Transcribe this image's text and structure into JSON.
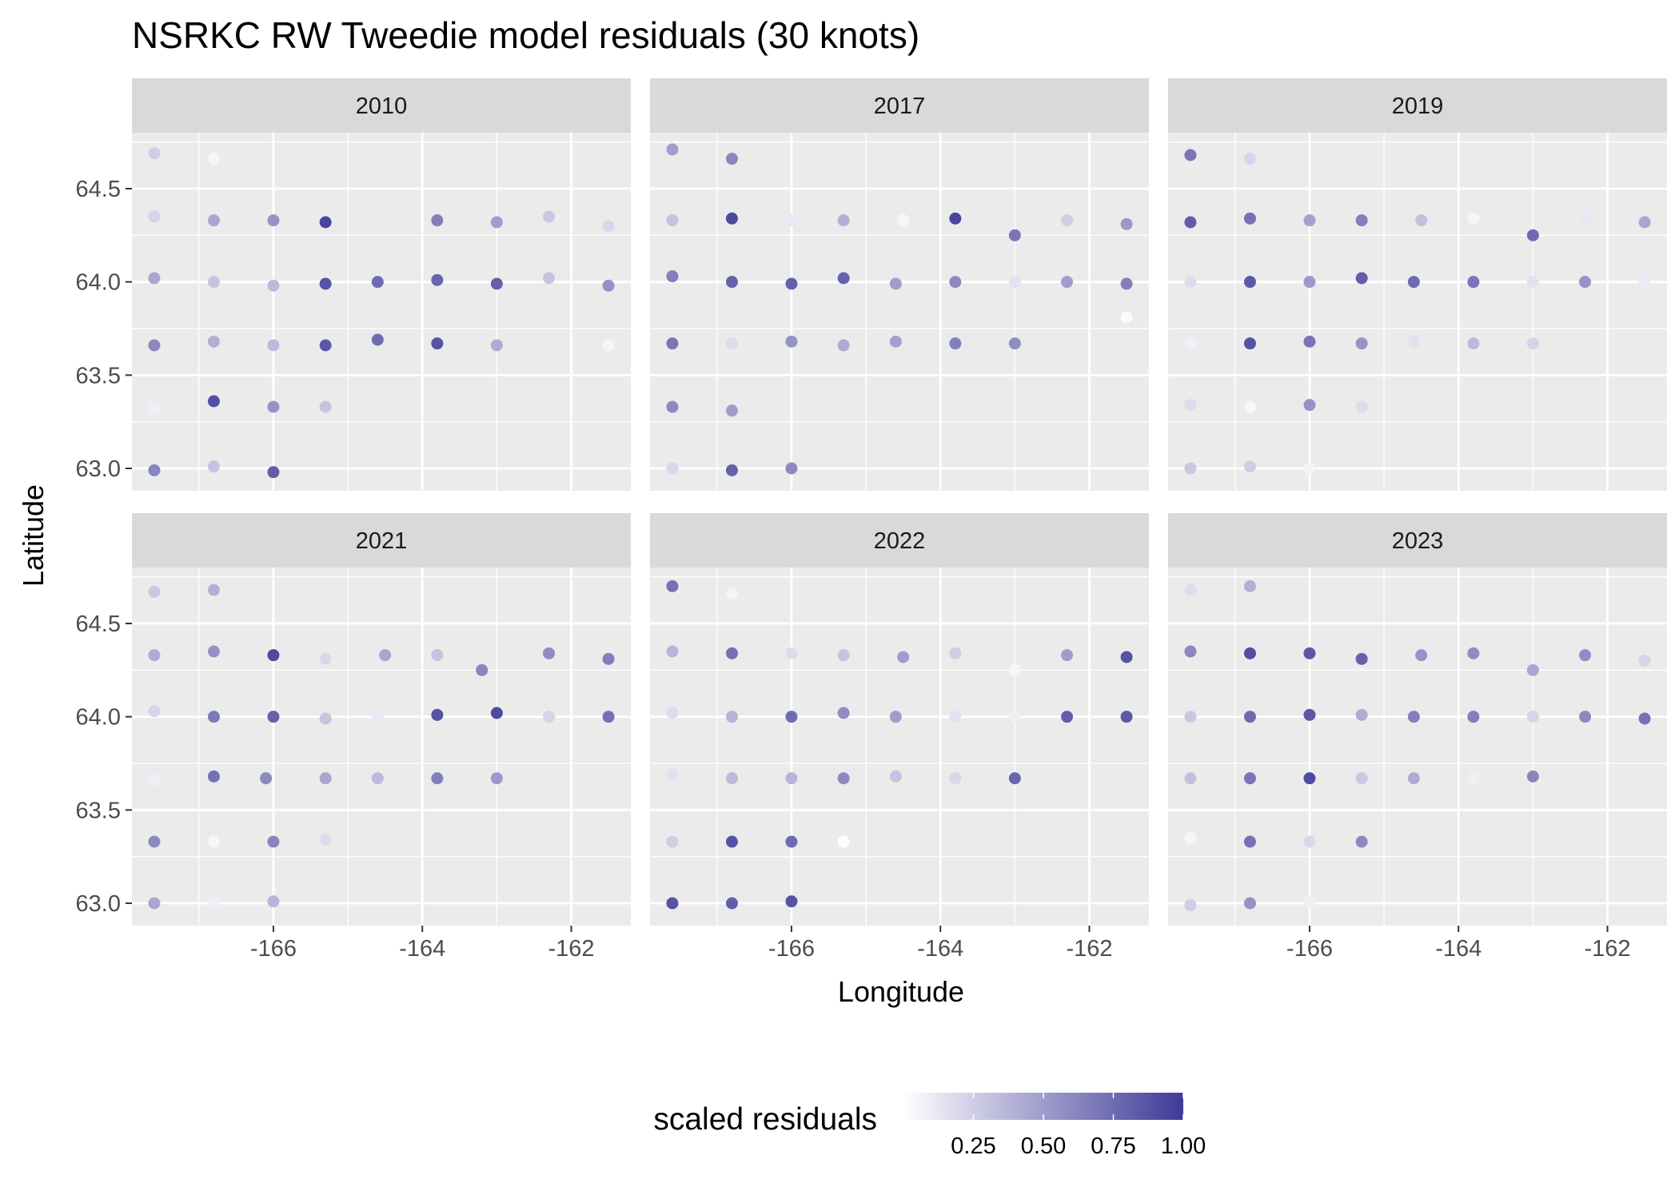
{
  "chart_data": {
    "type": "scatter",
    "title": "NSRKC RW Tweedie model residuals (30 knots)",
    "xlabel": "Longitude",
    "ylabel": "Latitude",
    "xlim": [
      -167.9,
      -161.2
    ],
    "ylim": [
      62.88,
      64.8
    ],
    "x_ticks": [
      -166,
      -164,
      -162
    ],
    "x_tick_labels": [
      "-166",
      "-164",
      "-162"
    ],
    "y_ticks": [
      63.0,
      63.5,
      64.0,
      64.5
    ],
    "y_tick_labels": [
      "63.0",
      "63.5",
      "64.0",
      "64.5"
    ],
    "grid": true,
    "color_scale": {
      "title": "scaled residuals",
      "low_color": "#ffffff",
      "high_color": "#3f3a98",
      "range": [
        0.0,
        1.0
      ],
      "ticks": [
        0.25,
        0.5,
        0.75,
        1.0
      ],
      "tick_labels": [
        "0.25",
        "0.50",
        "0.75",
        "1.00"
      ],
      "position": "bottom"
    },
    "panels": [
      {
        "label": "2010",
        "points": [
          [
            -167.6,
            64.69,
            0.25
          ],
          [
            -166.8,
            64.66,
            0.05
          ],
          [
            -167.6,
            64.35,
            0.22
          ],
          [
            -166.8,
            64.33,
            0.45
          ],
          [
            -166.0,
            64.33,
            0.55
          ],
          [
            -165.3,
            64.32,
            0.95
          ],
          [
            -164.5,
            64.32,
            0.1
          ],
          [
            -163.8,
            64.33,
            0.65
          ],
          [
            -163.0,
            64.32,
            0.5
          ],
          [
            -162.3,
            64.35,
            0.28
          ],
          [
            -161.5,
            64.3,
            0.2
          ],
          [
            -167.6,
            64.02,
            0.45
          ],
          [
            -166.8,
            64.0,
            0.3
          ],
          [
            -166.0,
            63.98,
            0.35
          ],
          [
            -165.3,
            63.99,
            0.88
          ],
          [
            -164.6,
            64.0,
            0.75
          ],
          [
            -163.8,
            64.01,
            0.78
          ],
          [
            -163.0,
            63.99,
            0.8
          ],
          [
            -162.3,
            64.02,
            0.3
          ],
          [
            -161.5,
            63.98,
            0.55
          ],
          [
            -167.6,
            63.66,
            0.6
          ],
          [
            -166.8,
            63.68,
            0.4
          ],
          [
            -166.0,
            63.66,
            0.35
          ],
          [
            -165.3,
            63.66,
            0.85
          ],
          [
            -164.6,
            63.69,
            0.75
          ],
          [
            -163.8,
            63.67,
            0.88
          ],
          [
            -163.0,
            63.66,
            0.42
          ],
          [
            -161.5,
            63.66,
            0.05
          ],
          [
            -167.6,
            63.32,
            0.08
          ],
          [
            -166.8,
            63.36,
            0.9
          ],
          [
            -166.0,
            63.33,
            0.55
          ],
          [
            -165.3,
            63.33,
            0.3
          ],
          [
            -167.6,
            62.99,
            0.62
          ],
          [
            -166.8,
            63.01,
            0.3
          ],
          [
            -166.0,
            62.98,
            0.82
          ]
        ]
      },
      {
        "label": "2017",
        "points": [
          [
            -167.6,
            64.71,
            0.5
          ],
          [
            -166.8,
            64.66,
            0.62
          ],
          [
            -167.6,
            64.33,
            0.3
          ],
          [
            -166.8,
            64.34,
            0.92
          ],
          [
            -166.0,
            64.33,
            0.12
          ],
          [
            -165.3,
            64.33,
            0.4
          ],
          [
            -164.5,
            64.33,
            0.05
          ],
          [
            -163.8,
            64.34,
            0.95
          ],
          [
            -163.0,
            64.25,
            0.7
          ],
          [
            -162.3,
            64.33,
            0.25
          ],
          [
            -161.5,
            64.31,
            0.52
          ],
          [
            -167.6,
            64.03,
            0.65
          ],
          [
            -166.8,
            64.0,
            0.8
          ],
          [
            -166.0,
            63.99,
            0.8
          ],
          [
            -165.3,
            64.02,
            0.8
          ],
          [
            -164.6,
            63.99,
            0.5
          ],
          [
            -163.8,
            64.0,
            0.6
          ],
          [
            -163.0,
            64.0,
            0.15
          ],
          [
            -162.3,
            64.0,
            0.5
          ],
          [
            -161.5,
            63.99,
            0.65
          ],
          [
            -161.5,
            63.81,
            0.02
          ],
          [
            -167.6,
            63.67,
            0.7
          ],
          [
            -166.8,
            63.67,
            0.18
          ],
          [
            -166.0,
            63.68,
            0.55
          ],
          [
            -165.3,
            63.66,
            0.42
          ],
          [
            -164.6,
            63.68,
            0.48
          ],
          [
            -163.8,
            63.67,
            0.65
          ],
          [
            -163.0,
            63.67,
            0.58
          ],
          [
            -167.6,
            63.33,
            0.6
          ],
          [
            -166.8,
            63.31,
            0.5
          ],
          [
            -167.6,
            63.0,
            0.2
          ],
          [
            -166.8,
            62.99,
            0.8
          ],
          [
            -166.0,
            63.0,
            0.6
          ]
        ]
      },
      {
        "label": "2019",
        "points": [
          [
            -167.6,
            64.68,
            0.7
          ],
          [
            -166.8,
            64.66,
            0.22
          ],
          [
            -167.6,
            64.32,
            0.82
          ],
          [
            -166.8,
            64.34,
            0.72
          ],
          [
            -166.0,
            64.33,
            0.48
          ],
          [
            -165.3,
            64.33,
            0.65
          ],
          [
            -164.5,
            64.33,
            0.32
          ],
          [
            -163.8,
            64.34,
            0.05
          ],
          [
            -163.0,
            64.25,
            0.75
          ],
          [
            -162.3,
            64.33,
            0.12
          ],
          [
            -161.5,
            64.32,
            0.45
          ],
          [
            -167.6,
            64.0,
            0.18
          ],
          [
            -166.8,
            64.0,
            0.85
          ],
          [
            -166.0,
            64.0,
            0.52
          ],
          [
            -165.3,
            64.02,
            0.82
          ],
          [
            -164.6,
            64.0,
            0.75
          ],
          [
            -163.8,
            64.0,
            0.7
          ],
          [
            -163.0,
            64.0,
            0.15
          ],
          [
            -162.3,
            64.0,
            0.55
          ],
          [
            -161.5,
            64.0,
            0.1
          ],
          [
            -167.6,
            63.67,
            0.08
          ],
          [
            -166.8,
            63.67,
            0.88
          ],
          [
            -166.0,
            63.68,
            0.7
          ],
          [
            -165.3,
            63.67,
            0.55
          ],
          [
            -164.6,
            63.68,
            0.15
          ],
          [
            -163.8,
            63.67,
            0.35
          ],
          [
            -163.0,
            63.67,
            0.22
          ],
          [
            -167.6,
            63.34,
            0.18
          ],
          [
            -166.8,
            63.33,
            0.04
          ],
          [
            -166.0,
            63.34,
            0.55
          ],
          [
            -165.3,
            63.33,
            0.18
          ],
          [
            -167.6,
            63.0,
            0.28
          ],
          [
            -166.8,
            63.01,
            0.25
          ],
          [
            -166.0,
            63.0,
            0.06
          ]
        ]
      },
      {
        "label": "2021",
        "points": [
          [
            -167.6,
            64.67,
            0.28
          ],
          [
            -166.8,
            64.68,
            0.4
          ],
          [
            -167.6,
            64.33,
            0.42
          ],
          [
            -166.8,
            64.35,
            0.55
          ],
          [
            -166.0,
            64.33,
            0.92
          ],
          [
            -165.3,
            64.31,
            0.2
          ],
          [
            -164.5,
            64.33,
            0.45
          ],
          [
            -163.8,
            64.33,
            0.3
          ],
          [
            -163.2,
            64.25,
            0.62
          ],
          [
            -162.3,
            64.34,
            0.58
          ],
          [
            -161.5,
            64.31,
            0.65
          ],
          [
            -167.6,
            64.03,
            0.22
          ],
          [
            -166.8,
            64.0,
            0.68
          ],
          [
            -166.0,
            64.0,
            0.8
          ],
          [
            -165.3,
            63.99,
            0.3
          ],
          [
            -164.6,
            64.0,
            0.12
          ],
          [
            -163.8,
            64.01,
            0.88
          ],
          [
            -163.0,
            64.02,
            0.92
          ],
          [
            -162.3,
            64.0,
            0.22
          ],
          [
            -161.5,
            64.0,
            0.72
          ],
          [
            -167.6,
            63.66,
            0.08
          ],
          [
            -166.8,
            63.68,
            0.72
          ],
          [
            -166.1,
            63.67,
            0.6
          ],
          [
            -165.3,
            63.67,
            0.45
          ],
          [
            -164.6,
            63.67,
            0.35
          ],
          [
            -163.8,
            63.67,
            0.65
          ],
          [
            -163.0,
            63.67,
            0.52
          ],
          [
            -167.6,
            63.33,
            0.6
          ],
          [
            -166.8,
            63.33,
            0.04
          ],
          [
            -166.0,
            63.33,
            0.62
          ],
          [
            -165.3,
            63.34,
            0.18
          ],
          [
            -167.6,
            63.0,
            0.45
          ],
          [
            -166.8,
            63.0,
            0.08
          ],
          [
            -166.0,
            63.01,
            0.38
          ]
        ]
      },
      {
        "label": "2022",
        "points": [
          [
            -167.6,
            64.7,
            0.72
          ],
          [
            -166.8,
            64.66,
            0.06
          ],
          [
            -167.6,
            64.35,
            0.38
          ],
          [
            -166.8,
            64.34,
            0.72
          ],
          [
            -166.0,
            64.34,
            0.18
          ],
          [
            -165.3,
            64.33,
            0.3
          ],
          [
            -164.5,
            64.32,
            0.5
          ],
          [
            -163.8,
            64.34,
            0.25
          ],
          [
            -163.0,
            64.25,
            0.04
          ],
          [
            -162.3,
            64.33,
            0.5
          ],
          [
            -161.5,
            64.32,
            0.88
          ],
          [
            -167.6,
            64.02,
            0.18
          ],
          [
            -166.8,
            64.0,
            0.38
          ],
          [
            -166.0,
            64.0,
            0.75
          ],
          [
            -165.3,
            64.02,
            0.58
          ],
          [
            -164.6,
            64.0,
            0.5
          ],
          [
            -163.8,
            64.0,
            0.15
          ],
          [
            -163.0,
            64.0,
            0.08
          ],
          [
            -162.3,
            64.0,
            0.82
          ],
          [
            -161.5,
            64.0,
            0.85
          ],
          [
            -167.6,
            63.69,
            0.15
          ],
          [
            -166.8,
            63.67,
            0.35
          ],
          [
            -166.0,
            63.67,
            0.38
          ],
          [
            -165.3,
            63.67,
            0.6
          ],
          [
            -164.6,
            63.68,
            0.3
          ],
          [
            -163.8,
            63.67,
            0.2
          ],
          [
            -163.0,
            63.67,
            0.78
          ],
          [
            -167.6,
            63.33,
            0.25
          ],
          [
            -166.8,
            63.33,
            0.88
          ],
          [
            -166.0,
            63.33,
            0.75
          ],
          [
            -165.3,
            63.33,
            0.01
          ],
          [
            -167.6,
            63.0,
            0.88
          ],
          [
            -166.8,
            63.0,
            0.82
          ],
          [
            -166.0,
            63.01,
            0.88
          ]
        ]
      },
      {
        "label": "2023",
        "points": [
          [
            -167.6,
            64.68,
            0.18
          ],
          [
            -166.8,
            64.7,
            0.4
          ],
          [
            -167.6,
            64.35,
            0.6
          ],
          [
            -166.8,
            64.34,
            0.9
          ],
          [
            -166.0,
            64.34,
            0.85
          ],
          [
            -165.3,
            64.31,
            0.8
          ],
          [
            -164.5,
            64.33,
            0.55
          ],
          [
            -163.8,
            64.34,
            0.58
          ],
          [
            -163.0,
            64.25,
            0.45
          ],
          [
            -162.3,
            64.33,
            0.58
          ],
          [
            -161.5,
            64.3,
            0.22
          ],
          [
            -167.6,
            64.0,
            0.28
          ],
          [
            -166.8,
            64.0,
            0.75
          ],
          [
            -166.0,
            64.01,
            0.85
          ],
          [
            -165.3,
            64.01,
            0.42
          ],
          [
            -164.6,
            64.0,
            0.65
          ],
          [
            -163.8,
            64.0,
            0.65
          ],
          [
            -163.0,
            64.0,
            0.22
          ],
          [
            -162.3,
            64.0,
            0.6
          ],
          [
            -161.5,
            63.99,
            0.72
          ],
          [
            -167.6,
            63.67,
            0.32
          ],
          [
            -166.8,
            63.67,
            0.7
          ],
          [
            -166.0,
            63.67,
            0.92
          ],
          [
            -165.3,
            63.67,
            0.28
          ],
          [
            -164.6,
            63.67,
            0.42
          ],
          [
            -163.8,
            63.67,
            0.08
          ],
          [
            -163.0,
            63.68,
            0.62
          ],
          [
            -167.6,
            63.35,
            0.04
          ],
          [
            -166.8,
            63.33,
            0.72
          ],
          [
            -166.0,
            63.33,
            0.2
          ],
          [
            -165.3,
            63.33,
            0.6
          ],
          [
            -167.6,
            62.99,
            0.25
          ],
          [
            -166.8,
            63.0,
            0.55
          ],
          [
            -166.0,
            63.01,
            0.08
          ]
        ]
      }
    ]
  }
}
